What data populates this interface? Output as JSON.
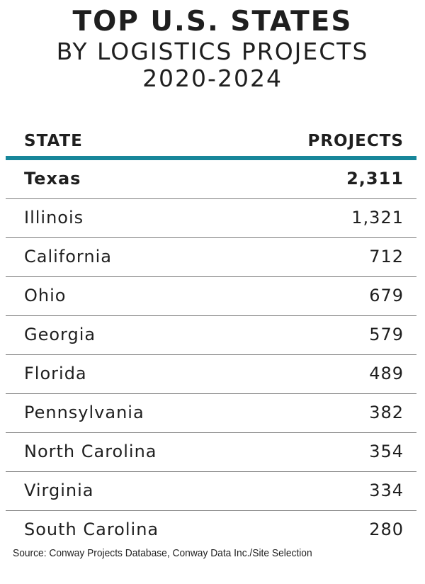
{
  "title": {
    "line1": "TOP U.S. STATES",
    "line2": "BY LOGISTICS PROJECTS",
    "line3": "2020-2024"
  },
  "table": {
    "headers": {
      "state": "STATE",
      "projects": "PROJECTS"
    },
    "rows": [
      {
        "state": "Texas",
        "projects": "2,311",
        "bold": true
      },
      {
        "state": "Illinois",
        "projects": "1,321"
      },
      {
        "state": "California",
        "projects": "712"
      },
      {
        "state": "Ohio",
        "projects": "679"
      },
      {
        "state": "Georgia",
        "projects": "579"
      },
      {
        "state": "Florida",
        "projects": "489"
      },
      {
        "state": "Pennsylvania",
        "projects": "382"
      },
      {
        "state": "North Carolina",
        "projects": "354"
      },
      {
        "state": "Virginia",
        "projects": "334"
      },
      {
        "state": "South Carolina",
        "projects": "280"
      }
    ]
  },
  "source": "Source: Conway Projects Database, Conway Data Inc./Site Selection",
  "colors": {
    "accent_rule": "#17869a",
    "text": "#1f1f1f",
    "row_divider": "#7c7c7c"
  },
  "chart_data": {
    "type": "table",
    "title": "TOP U.S. STATES BY LOGISTICS PROJECTS 2020-2024",
    "columns": [
      "STATE",
      "PROJECTS"
    ],
    "categories": [
      "Texas",
      "Illinois",
      "California",
      "Ohio",
      "Georgia",
      "Florida",
      "Pennsylvania",
      "North Carolina",
      "Virginia",
      "South Carolina"
    ],
    "values": [
      2311,
      1321,
      712,
      679,
      579,
      489,
      382,
      354,
      334,
      280
    ]
  }
}
